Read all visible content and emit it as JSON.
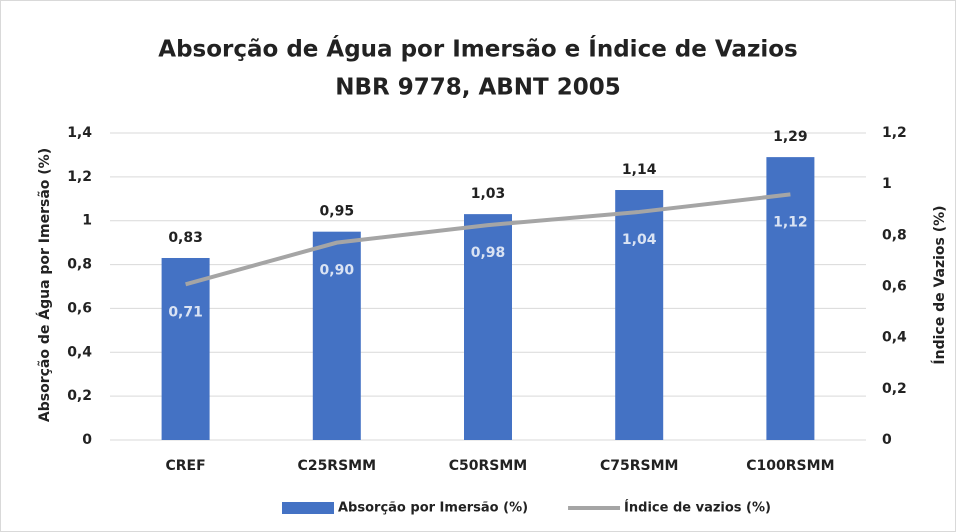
{
  "chart_data": {
    "type": "bar",
    "title": [
      "Absorção de Água por Imersão e Índice de Vazios",
      "NBR 9778, ABNT 2005"
    ],
    "y_label": "Absorção de Água por Imersão (%)",
    "y2_label": "Índice de Vazios (%)",
    "categories": [
      "CREF",
      "C25RSMM",
      "C50RSMM",
      "C75RSMM",
      "C100RSMM"
    ],
    "series": [
      {
        "name": "Absorção por Imersão (%)",
        "type": "bar",
        "color": "#4472c4",
        "values": [
          0.83,
          0.95,
          1.03,
          1.14,
          1.29
        ],
        "value_labels": [
          "0,83",
          "0,95",
          "1,03",
          "1,14",
          "1,29"
        ]
      },
      {
        "name": "Índice de vazios (%)",
        "type": "line",
        "color": "#a5a5a5",
        "values": [
          0.71,
          0.9,
          0.98,
          1.04,
          1.12
        ],
        "value_labels": [
          "0,71",
          "0,90",
          "0,98",
          "1,04",
          "1,12"
        ]
      }
    ],
    "ylim": [
      0,
      1.4
    ],
    "yticks": [
      0,
      {
        "value": 0.2,
        "label": "0,2"
      },
      {
        "value": 0.4,
        "label": "0,4"
      },
      {
        "value": 0.6,
        "label": "0,6"
      },
      {
        "value": 0.8,
        "label": "0,8"
      },
      1,
      {
        "value": 1.2,
        "label": "1,2"
      },
      {
        "value": 1.4,
        "label": "1,4"
      }
    ],
    "y2lim": [
      0,
      1.2
    ],
    "y2ticks": [
      0,
      {
        "value": 0.2,
        "label": "0,2"
      },
      {
        "value": 0.4,
        "label": "0,4"
      },
      {
        "value": 0.6,
        "label": "0,6"
      },
      {
        "value": 0.8,
        "label": "0,8"
      },
      1,
      {
        "value": 1.2,
        "label": "1,2"
      }
    ],
    "grid": true,
    "legend": "bottom"
  }
}
